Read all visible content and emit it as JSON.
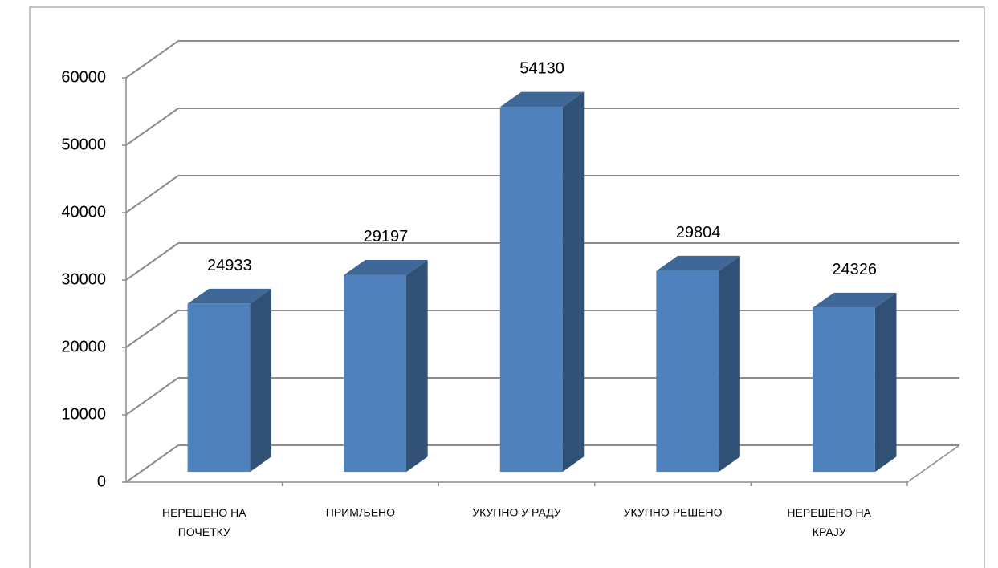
{
  "chart_data": {
    "type": "bar3d",
    "categories": [
      "НЕРЕШЕНО НА ПОЧЕТКУ",
      "ПРИМЉЕНО",
      "УКУПНО У РАДУ",
      "УКУПНО РЕШЕНО",
      "НЕРЕШЕНО НА КРАЈУ"
    ],
    "values": [
      24933,
      29197,
      54130,
      29804,
      24326
    ],
    "color": "#4f81bd",
    "ylim": [
      0,
      60000
    ],
    "yticks": [
      0,
      10000,
      20000,
      30000,
      40000,
      50000,
      60000
    ],
    "grid": true
  }
}
